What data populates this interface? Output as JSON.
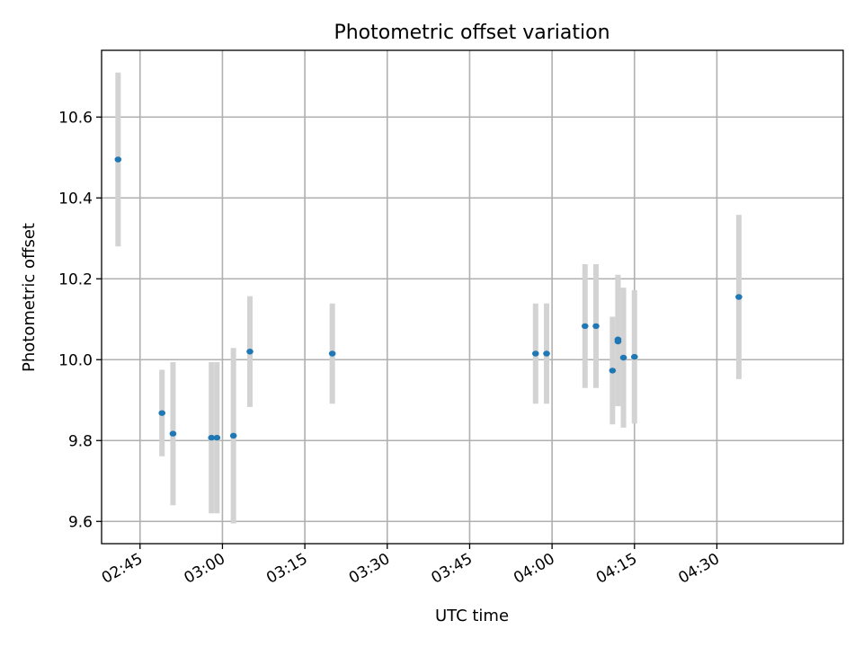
{
  "chart_data": {
    "type": "scatter",
    "title": "Photometric offset variation",
    "xlabel": "UTC time",
    "ylabel": "Photometric offset",
    "x_unit": "UTC time of day (HH:MM)",
    "xlim": [
      "02:38",
      "04:53"
    ],
    "ylim": [
      9.545,
      10.765
    ],
    "x_ticks": [
      "02:45",
      "03:00",
      "03:15",
      "03:30",
      "03:45",
      "04:00",
      "04:15",
      "04:30"
    ],
    "y_ticks": [
      9.6,
      9.8,
      10.0,
      10.2,
      10.4,
      10.6
    ],
    "y_tick_labels": [
      "9.6",
      "9.8",
      "10.0",
      "10.2",
      "10.4",
      "10.6"
    ],
    "grid": true,
    "error_bars": true,
    "colors": {
      "points": "#1f77b4",
      "error_bars": "#d3d3d3",
      "grid": "#b0b0b0"
    },
    "points": [
      {
        "x": "02:41",
        "y": 10.495,
        "yerr": 0.215
      },
      {
        "x": "02:49",
        "y": 9.868,
        "yerr": 0.107
      },
      {
        "x": "02:51",
        "y": 9.817,
        "yerr": 0.177
      },
      {
        "x": "02:58",
        "y": 9.807,
        "yerr": 0.187
      },
      {
        "x": "02:59",
        "y": 9.807,
        "yerr": 0.187
      },
      {
        "x": "03:02",
        "y": 9.812,
        "yerr": 0.217
      },
      {
        "x": "03:05",
        "y": 10.02,
        "yerr": 0.137
      },
      {
        "x": "03:20",
        "y": 10.015,
        "yerr": 0.124
      },
      {
        "x": "03:57",
        "y": 10.015,
        "yerr": 0.124
      },
      {
        "x": "03:59",
        "y": 10.015,
        "yerr": 0.124
      },
      {
        "x": "04:06",
        "y": 10.083,
        "yerr": 0.153
      },
      {
        "x": "04:08",
        "y": 10.083,
        "yerr": 0.153
      },
      {
        "x": "04:11",
        "y": 9.973,
        "yerr": 0.133
      },
      {
        "x": "04:12",
        "y": 10.05,
        "yerr": 0.16
      },
      {
        "x": "04:12",
        "y": 10.045,
        "yerr": 0.16
      },
      {
        "x": "04:13",
        "y": 10.005,
        "yerr": 0.173
      },
      {
        "x": "04:15",
        "y": 10.007,
        "yerr": 0.165
      },
      {
        "x": "04:34",
        "y": 10.155,
        "yerr": 0.203
      }
    ]
  }
}
